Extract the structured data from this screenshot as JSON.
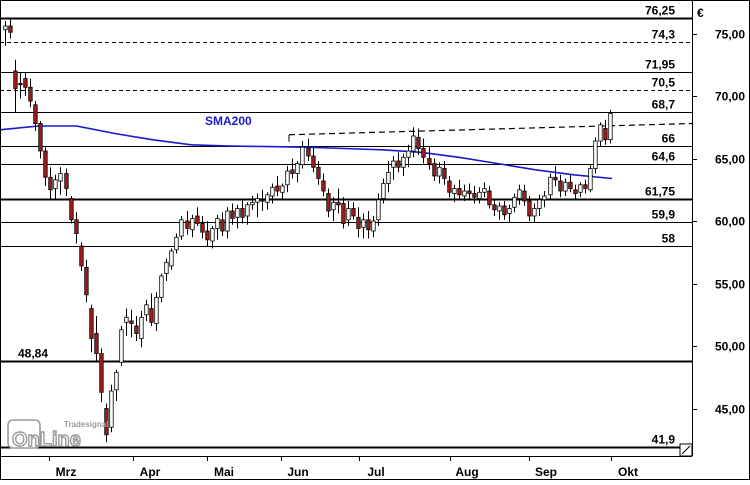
{
  "chart_data": {
    "type": "candlestick",
    "currency_symbol": "€",
    "ylim": [
      41.2,
      77.2
    ],
    "y_ticks": [
      {
        "value": 45,
        "label": "45,00"
      },
      {
        "value": 50,
        "label": "50,00"
      },
      {
        "value": 55,
        "label": "55,00"
      },
      {
        "value": 60,
        "label": "60,00"
      },
      {
        "value": 65,
        "label": "65,00"
      },
      {
        "value": 70,
        "label": "70,00"
      },
      {
        "value": 75,
        "label": "75,00"
      }
    ],
    "x_months": [
      "Mrz",
      "Apr",
      "Mai",
      "Jun",
      "Jul",
      "Aug",
      "Sep",
      "Okt"
    ],
    "horizontal_levels": [
      {
        "value": 76.25,
        "label": "76,25",
        "style": "solid",
        "weight": "heavy"
      },
      {
        "value": 74.3,
        "label": "74,3",
        "style": "dashed"
      },
      {
        "value": 71.95,
        "label": "71,95",
        "style": "solid"
      },
      {
        "value": 70.5,
        "label": "70,5",
        "style": "dashed"
      },
      {
        "value": 68.7,
        "label": "68,7",
        "style": "solid"
      },
      {
        "value": 66,
        "label": "66",
        "style": "solid"
      },
      {
        "value": 64.6,
        "label": "64,6",
        "style": "solid"
      },
      {
        "value": 61.75,
        "label": "61,75",
        "style": "solid",
        "weight": "heavy"
      },
      {
        "value": 59.9,
        "label": "59,9",
        "style": "solid"
      },
      {
        "value": 58,
        "label": "58",
        "style": "solid"
      },
      {
        "value": 48.84,
        "label": "48,84",
        "style": "solid",
        "weight": "heavy"
      },
      {
        "value": 41.9,
        "label": "41,9",
        "style": "solid",
        "weight": "heavy"
      }
    ],
    "indicator": {
      "name": "SMA200",
      "color": "#1a1acc"
    },
    "sma200": [
      67.3,
      67.6,
      67.6,
      67.0,
      66.5,
      66.1,
      66.0,
      65.95,
      65.9,
      65.8,
      65.7,
      65.5,
      65.1,
      64.6,
      64.1,
      63.7,
      63.4
    ],
    "trendline": {
      "from": 66.9,
      "to": 67.8,
      "style": "dashed"
    },
    "colors": {
      "up_candle": "#ffffff",
      "down_candle": "#a01c1c",
      "wick": "#000000",
      "sma": "#1a1acc",
      "grid": "#000000"
    },
    "candles": [
      [
        75.3,
        76.0,
        74.0,
        75.6
      ],
      [
        75.6,
        76.2,
        74.6,
        75.1
      ],
      [
        72.0,
        72.9,
        68.7,
        70.6
      ],
      [
        71.0,
        71.9,
        69.8,
        70.9
      ],
      [
        71.4,
        71.9,
        70.0,
        70.7
      ],
      [
        70.7,
        71.4,
        69.1,
        69.6
      ],
      [
        69.3,
        69.6,
        67.2,
        67.8
      ],
      [
        67.8,
        68.0,
        65.0,
        65.6
      ],
      [
        65.6,
        65.9,
        62.8,
        63.5
      ],
      [
        63.5,
        64.3,
        61.7,
        62.5
      ],
      [
        62.6,
        63.7,
        61.7,
        63.3
      ],
      [
        63.2,
        64.3,
        62.1,
        63.8
      ],
      [
        63.8,
        64.2,
        62.0,
        62.6
      ],
      [
        61.8,
        62.0,
        59.8,
        60.1
      ],
      [
        60.1,
        60.7,
        58.2,
        59.0
      ],
      [
        58.0,
        58.3,
        56.0,
        56.4
      ],
      [
        56.3,
        56.9,
        53.5,
        54.1
      ],
      [
        53.0,
        53.3,
        49.5,
        50.6
      ],
      [
        51.0,
        52.4,
        48.8,
        49.4
      ],
      [
        49.4,
        49.8,
        45.5,
        46.3
      ],
      [
        45.0,
        45.4,
        42.3,
        42.9
      ],
      [
        43.5,
        46.9,
        43.1,
        46.4
      ],
      [
        46.5,
        48.1,
        45.6,
        47.9
      ],
      [
        48.7,
        51.6,
        48.4,
        51.3
      ],
      [
        51.9,
        53.0,
        50.8,
        52.3
      ],
      [
        52.0,
        52.9,
        50.7,
        51.8
      ],
      [
        51.6,
        52.4,
        50.4,
        51.0
      ],
      [
        50.6,
        52.8,
        49.9,
        52.3
      ],
      [
        52.5,
        53.7,
        52.0,
        53.3
      ],
      [
        53.0,
        54.2,
        51.6,
        51.9
      ],
      [
        51.8,
        54.3,
        51.2,
        53.9
      ],
      [
        53.9,
        55.8,
        53.5,
        55.6
      ],
      [
        55.8,
        57.0,
        55.2,
        56.7
      ],
      [
        56.4,
        57.8,
        56.1,
        57.6
      ],
      [
        57.7,
        59.0,
        57.4,
        58.7
      ],
      [
        58.8,
        60.4,
        58.5,
        60.1
      ],
      [
        60.0,
        60.8,
        58.9,
        59.4
      ],
      [
        59.3,
        60.5,
        58.7,
        60.2
      ],
      [
        60.4,
        61.1,
        59.6,
        59.8
      ],
      [
        59.8,
        60.4,
        58.6,
        59.1
      ],
      [
        59.2,
        60.0,
        58.0,
        58.5
      ],
      [
        58.4,
        59.6,
        57.8,
        59.4
      ],
      [
        59.4,
        60.5,
        58.5,
        60.2
      ],
      [
        60.1,
        60.7,
        58.8,
        59.2
      ],
      [
        59.2,
        61.1,
        58.6,
        60.8
      ],
      [
        60.8,
        61.4,
        59.7,
        60.2
      ],
      [
        60.3,
        61.3,
        59.4,
        61.0
      ],
      [
        61.0,
        61.7,
        59.8,
        60.3
      ],
      [
        60.4,
        61.5,
        59.7,
        61.3
      ],
      [
        61.3,
        62.0,
        60.9,
        61.5
      ],
      [
        61.5,
        62.2,
        60.3,
        61.8
      ],
      [
        61.7,
        62.5,
        60.8,
        61.6
      ],
      [
        61.5,
        62.3,
        60.9,
        62.1
      ],
      [
        62.0,
        63.0,
        61.4,
        62.7
      ],
      [
        62.8,
        63.6,
        62.0,
        62.4
      ],
      [
        62.3,
        63.0,
        61.7,
        62.8
      ],
      [
        62.9,
        64.4,
        62.3,
        64.0
      ],
      [
        64.1,
        65.0,
        63.4,
        63.8
      ],
      [
        63.8,
        64.8,
        63.1,
        64.6
      ],
      [
        64.5,
        66.4,
        64.2,
        65.9
      ],
      [
        65.8,
        66.6,
        64.8,
        65.2
      ],
      [
        65.2,
        65.9,
        63.9,
        64.3
      ],
      [
        64.3,
        64.8,
        62.9,
        63.4
      ],
      [
        63.2,
        63.8,
        62.0,
        62.4
      ],
      [
        62.2,
        62.6,
        60.3,
        60.8
      ],
      [
        60.9,
        61.9,
        60.0,
        61.5
      ],
      [
        61.5,
        62.6,
        60.6,
        61.3
      ],
      [
        61.4,
        61.9,
        59.4,
        59.8
      ],
      [
        60.1,
        61.6,
        59.6,
        61.0
      ],
      [
        61.0,
        61.5,
        60.1,
        60.4
      ],
      [
        60.3,
        61.1,
        58.7,
        59.4
      ],
      [
        59.5,
        60.6,
        58.6,
        60.1
      ],
      [
        60.1,
        60.8,
        58.6,
        59.3
      ],
      [
        59.2,
        60.4,
        58.7,
        60.0
      ],
      [
        60.1,
        62.2,
        59.6,
        61.7
      ],
      [
        61.8,
        63.4,
        61.4,
        63.0
      ],
      [
        63.0,
        64.8,
        62.3,
        63.9
      ],
      [
        64.3,
        65.2,
        63.3,
        64.8
      ],
      [
        64.8,
        65.5,
        63.9,
        64.3
      ],
      [
        64.3,
        65.4,
        63.6,
        65.1
      ],
      [
        65.1,
        66.1,
        64.3,
        65.6
      ],
      [
        65.6,
        67.5,
        65.1,
        66.8
      ],
      [
        66.7,
        67.4,
        65.3,
        65.8
      ],
      [
        65.8,
        66.6,
        64.6,
        65.1
      ],
      [
        65.0,
        66.0,
        64.1,
        64.6
      ],
      [
        64.6,
        65.0,
        63.2,
        63.6
      ],
      [
        63.6,
        64.7,
        63.0,
        64.3
      ],
      [
        64.2,
        64.8,
        62.9,
        63.4
      ],
      [
        63.2,
        63.6,
        61.9,
        62.3
      ],
      [
        62.2,
        62.9,
        61.5,
        62.6
      ],
      [
        62.6,
        63.3,
        61.8,
        62.1
      ],
      [
        62.0,
        62.9,
        61.6,
        62.4
      ],
      [
        62.4,
        63.0,
        61.7,
        62.2
      ],
      [
        62.2,
        62.8,
        61.4,
        61.9
      ],
      [
        61.8,
        62.7,
        61.4,
        62.3
      ],
      [
        62.3,
        63.1,
        61.9,
        62.6
      ],
      [
        62.4,
        62.8,
        61.0,
        61.3
      ],
      [
        61.3,
        61.8,
        60.4,
        60.9
      ],
      [
        60.8,
        61.5,
        60.1,
        61.2
      ],
      [
        61.2,
        61.6,
        60.1,
        60.5
      ],
      [
        60.6,
        61.3,
        59.9,
        61.0
      ],
      [
        61.1,
        62.2,
        60.7,
        61.9
      ],
      [
        61.8,
        62.9,
        61.3,
        62.5
      ],
      [
        62.4,
        62.9,
        61.2,
        61.6
      ],
      [
        61.6,
        62.0,
        60.0,
        60.4
      ],
      [
        60.4,
        61.4,
        59.9,
        61.0
      ],
      [
        61.0,
        62.1,
        60.4,
        61.7
      ],
      [
        61.7,
        62.4,
        61.1,
        62.0
      ],
      [
        62.1,
        63.8,
        61.8,
        63.5
      ],
      [
        63.5,
        64.4,
        62.8,
        63.3
      ],
      [
        63.2,
        63.7,
        61.9,
        62.4
      ],
      [
        62.4,
        63.4,
        62.0,
        63.1
      ],
      [
        63.1,
        63.7,
        62.3,
        62.6
      ],
      [
        62.5,
        62.9,
        61.8,
        62.2
      ],
      [
        62.3,
        63.1,
        61.9,
        62.9
      ],
      [
        62.9,
        63.3,
        62.2,
        62.6
      ],
      [
        62.5,
        64.5,
        62.3,
        64.2
      ],
      [
        64.2,
        66.7,
        63.8,
        66.4
      ],
      [
        66.4,
        67.9,
        66.0,
        67.7
      ],
      [
        67.4,
        68.1,
        66.1,
        66.5
      ],
      [
        66.5,
        68.9,
        66.2,
        68.6
      ]
    ]
  },
  "logo": {
    "brand_small": "Tradesignal",
    "word": "OnLine"
  }
}
